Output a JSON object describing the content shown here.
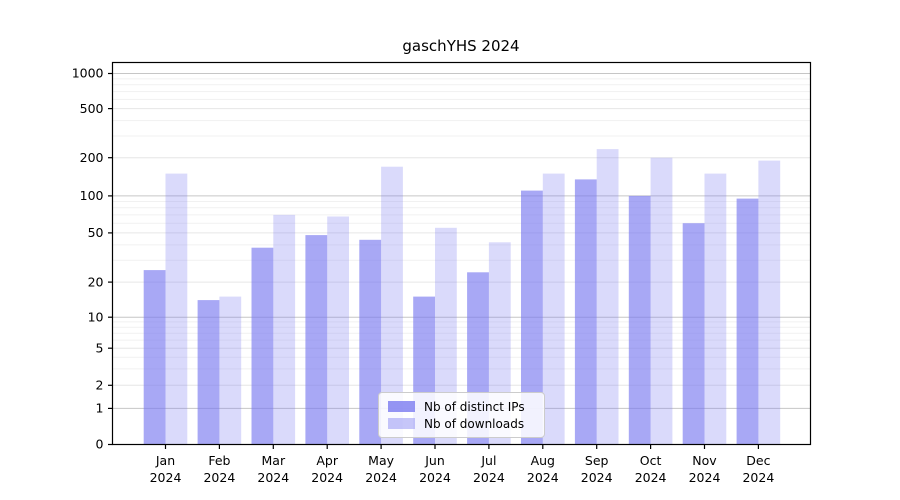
{
  "chart_data": {
    "type": "bar",
    "title": "gaschYHS 2024",
    "categories": [
      "Jan",
      "Feb",
      "Mar",
      "Apr",
      "May",
      "Jun",
      "Jul",
      "Aug",
      "Sep",
      "Oct",
      "Nov",
      "Dec"
    ],
    "year": "2024",
    "series": [
      {
        "name": "Nb of distinct IPs",
        "color": "#7a7af0",
        "fill_opacity": 0.65,
        "values": [
          25,
          14,
          38,
          48,
          44,
          15,
          24,
          110,
          135,
          100,
          60,
          95
        ]
      },
      {
        "name": "Nb of downloads",
        "color": "#7a7af0",
        "fill_opacity": 0.28,
        "values": [
          150,
          15,
          70,
          68,
          170,
          55,
          42,
          150,
          235,
          200,
          150,
          190
        ]
      }
    ],
    "yticks": [
      0,
      1,
      2,
      5,
      10,
      20,
      50,
      100,
      200,
      500,
      1000
    ],
    "ylim": [
      0,
      1150
    ],
    "scale": "symlog",
    "grid": true,
    "legend_position": "lower center"
  }
}
